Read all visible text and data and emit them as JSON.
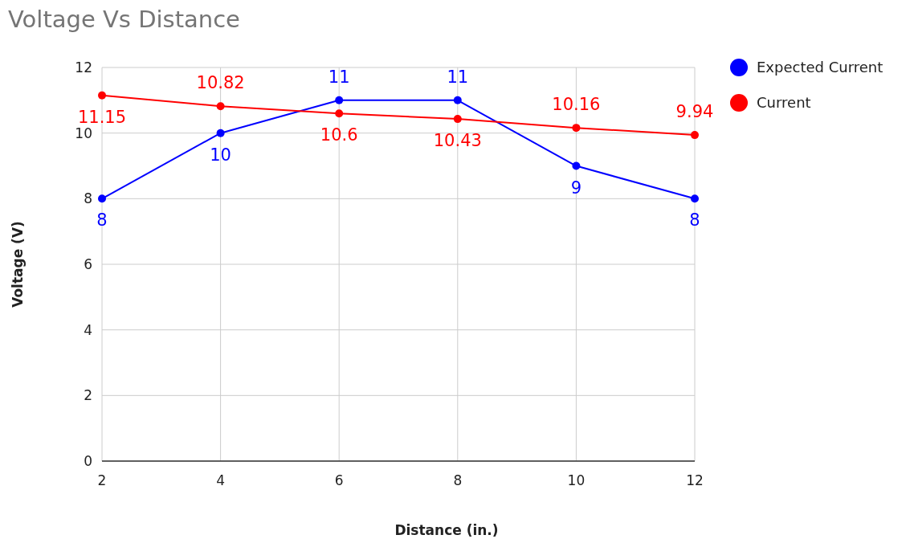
{
  "chart_data": {
    "type": "line",
    "title": "Voltage Vs Distance",
    "xlabel": "Distance (in.)",
    "ylabel": "Voltage (V)",
    "x": [
      2,
      4,
      6,
      8,
      10,
      12
    ],
    "series": [
      {
        "name": "Expected Current",
        "color": "#0000ff",
        "values": [
          8,
          10,
          11,
          11,
          9,
          8
        ]
      },
      {
        "name": "Current",
        "color": "#ff0000",
        "values": [
          11.15,
          10.82,
          10.6,
          10.43,
          10.16,
          9.94
        ]
      }
    ],
    "xlim": [
      2,
      12
    ],
    "xticks": [
      2,
      4,
      6,
      8,
      10,
      12
    ],
    "ylim": [
      0,
      12
    ],
    "yticks": [
      0,
      2,
      4,
      6,
      8,
      10,
      12
    ],
    "grid": true,
    "legend": "top right",
    "marker": "circle",
    "line_style": "solid",
    "data_labels": true
  }
}
